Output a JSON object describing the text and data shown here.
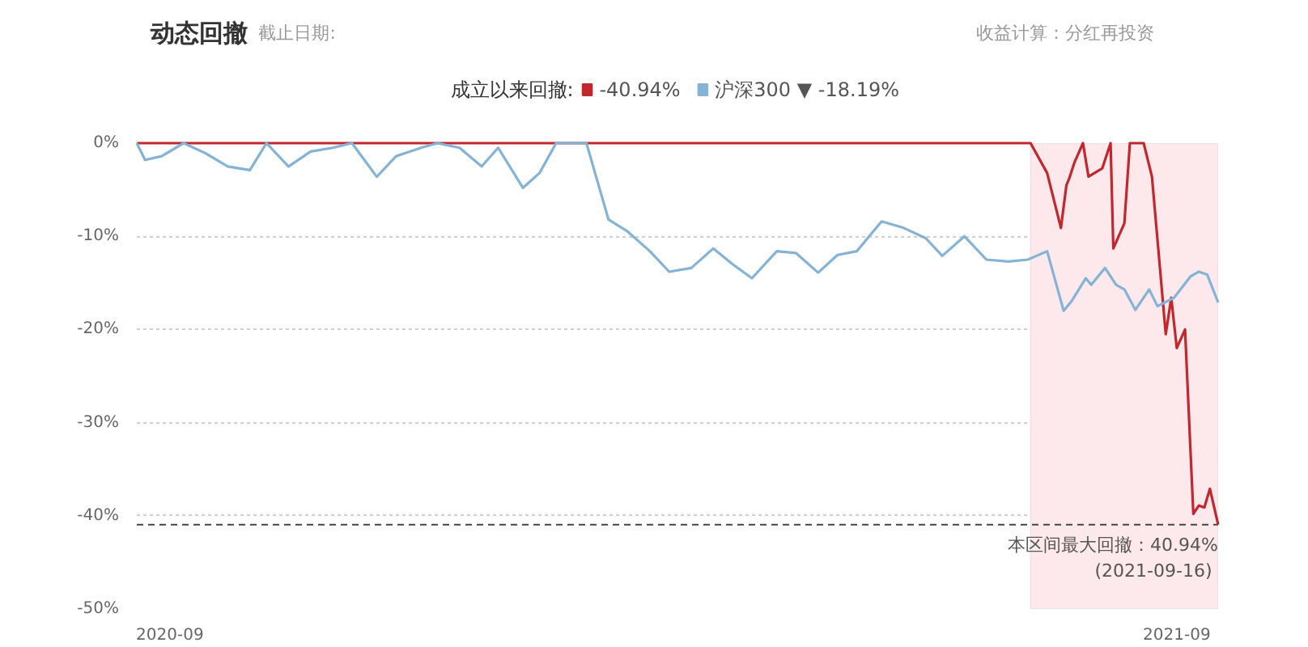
{
  "chart_data": {
    "type": "line",
    "title": "动态回撤",
    "subtitle": "截止日期:",
    "legend_title": "成立以来回撤:",
    "annotations": [
      "收益计算：分红再投资",
      "-40.94%",
      {
        "text": "本区间最大回撤：40.94%",
        "x": "2021-09-16",
        "y": -40.94
      },
      {
        "text": "(2021-09-16)",
        "x": "2021-09-16",
        "y": -40.94
      }
    ],
    "xlim": [
      "2020-08-20",
      "2021-09-16"
    ],
    "xticks": [
      {
        "value": "2020-09-01",
        "label": "2020-09"
      },
      {
        "value": "2021-09-01",
        "label": "2021-09"
      }
    ],
    "ylim": [
      -50,
      0
    ],
    "yticks": [
      {
        "value": 0,
        "label": "0%"
      },
      {
        "value": -10,
        "label": "-10%"
      },
      {
        "value": -20,
        "label": "-20%"
      },
      {
        "value": -30,
        "label": "-30%"
      },
      {
        "value": -40,
        "label": "-40%"
      },
      {
        "value": -50,
        "label": "-50%"
      }
    ],
    "grid": "y",
    "legend": "top",
    "bands": [
      {
        "axis": "x",
        "from": "2021-07-10",
        "to": "2021-09-16",
        "color": "#fde9ec"
      }
    ],
    "ref_lines": [
      {
        "axis": "y",
        "value": -40.94,
        "color": "#444444",
        "line_style": "dashed"
      }
    ],
    "series": [
      {
        "color": "#c1272d",
        "x": [
          "2020-08-20",
          "2021-07-10",
          "2021-07-16",
          "2021-07-21",
          "2021-07-23",
          "2021-07-24",
          "2021-07-26",
          "2021-07-29",
          "2021-07-31",
          "2021-08-05",
          "2021-08-08",
          "2021-08-09",
          "2021-08-13",
          "2021-08-15",
          "2021-08-20",
          "2021-08-23",
          "2021-08-28",
          "2021-08-30",
          "2021-09-01",
          "2021-09-04",
          "2021-09-07",
          "2021-09-09",
          "2021-09-11",
          "2021-09-13",
          "2021-09-16"
        ],
        "values": [
          0,
          0,
          -3.2,
          -9.1,
          -4.5,
          -3.8,
          -2.0,
          0,
          -3.6,
          -2.7,
          0,
          -11.3,
          -8.6,
          0,
          0,
          -3.6,
          -20.5,
          -16.6,
          -22.0,
          -20.0,
          -39.8,
          -38.9,
          -39.1,
          -37.1,
          -40.94
        ]
      },
      {
        "name": "沪深300 ▼ -18.19%",
        "color": "#85b3d6",
        "x": [
          "2020-08-20",
          "2020-08-23",
          "2020-08-29",
          "2020-09-06",
          "2020-09-14",
          "2020-09-22",
          "2020-09-30",
          "2020-10-06",
          "2020-10-14",
          "2020-10-22",
          "2020-10-30",
          "2020-11-06",
          "2020-11-15",
          "2020-11-22",
          "2020-12-01",
          "2020-12-07",
          "2020-12-15",
          "2020-12-23",
          "2020-12-29",
          "2021-01-07",
          "2021-01-13",
          "2021-01-19",
          "2021-01-30",
          "2021-02-07",
          "2021-02-14",
          "2021-02-22",
          "2021-03-01",
          "2021-03-09",
          "2021-03-17",
          "2021-03-24",
          "2021-03-31",
          "2021-04-09",
          "2021-04-16",
          "2021-04-24",
          "2021-05-01",
          "2021-05-08",
          "2021-05-17",
          "2021-05-25",
          "2021-06-02",
          "2021-06-08",
          "2021-06-16",
          "2021-06-24",
          "2021-07-02",
          "2021-07-09",
          "2021-07-16",
          "2021-07-22",
          "2021-07-25",
          "2021-07-30",
          "2021-08-01",
          "2021-08-06",
          "2021-08-10",
          "2021-08-13",
          "2021-08-17",
          "2021-08-22",
          "2021-08-25",
          "2021-08-31",
          "2021-09-06",
          "2021-09-09",
          "2021-09-12",
          "2021-09-16"
        ],
        "values": [
          0,
          -1.8,
          -1.4,
          0,
          -1.1,
          -2.5,
          -2.9,
          0,
          -2.5,
          -0.9,
          -0.5,
          0,
          -3.6,
          -1.4,
          -0.5,
          0,
          -0.5,
          -2.5,
          -0.5,
          -4.8,
          -3.2,
          0,
          0,
          -8.2,
          -9.5,
          -11.6,
          -13.8,
          -13.4,
          -11.3,
          -13.0,
          -14.5,
          -11.6,
          -11.8,
          -13.9,
          -12.0,
          -11.6,
          -8.4,
          -9.1,
          -10.2,
          -12.1,
          -10.0,
          -12.5,
          -12.7,
          -12.5,
          -11.6,
          -18.0,
          -16.9,
          -14.5,
          -15.2,
          -13.4,
          -15.2,
          -15.7,
          -17.9,
          -15.7,
          -17.5,
          -16.6,
          -14.3,
          -13.8,
          -14.1,
          -17.1
        ]
      }
    ]
  }
}
